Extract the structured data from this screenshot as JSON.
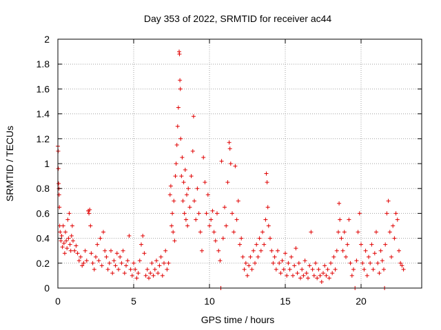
{
  "chart_data": {
    "type": "scatter",
    "title": "Day 353 of 2022, SRMTID for receiver ac44",
    "xlabel": "GPS time / hours",
    "ylabel": "SRMTID / TECUs",
    "xlim": [
      0,
      24
    ],
    "ylim": [
      0,
      2
    ],
    "xticks": [
      0,
      5,
      10,
      15,
      20
    ],
    "yticks": [
      0,
      0.2,
      0.4,
      0.6,
      0.8,
      1,
      1.2,
      1.4,
      1.6,
      1.8,
      2
    ],
    "grid": true,
    "marker": "+",
    "series": [
      {
        "name": "SRMTID",
        "color": "#e00000",
        "points": [
          [
            0.0,
            1.14
          ],
          [
            0.02,
            1.1
          ],
          [
            0.03,
            0.96
          ],
          [
            0.05,
            0.84
          ],
          [
            0.07,
            0.8
          ],
          [
            0.08,
            0.75
          ],
          [
            0.1,
            0.65
          ],
          [
            0.12,
            0.5
          ],
          [
            0.15,
            0.45
          ],
          [
            0.2,
            0.38
          ],
          [
            0.25,
            0.42
          ],
          [
            0.3,
            0.33
          ],
          [
            0.35,
            0.5
          ],
          [
            0.4,
            0.36
          ],
          [
            0.45,
            0.28
          ],
          [
            0.5,
            0.45
          ],
          [
            0.55,
            0.38
          ],
          [
            0.6,
            0.32
          ],
          [
            0.65,
            0.55
          ],
          [
            0.7,
            0.4
          ],
          [
            0.75,
            0.6
          ],
          [
            0.8,
            0.35
          ],
          [
            0.85,
            0.3
          ],
          [
            0.9,
            0.42
          ],
          [
            0.95,
            0.5
          ],
          [
            1.0,
            0.38
          ],
          [
            1.1,
            0.3
          ],
          [
            1.2,
            0.34
          ],
          [
            1.3,
            0.28
          ],
          [
            1.4,
            0.22
          ],
          [
            1.5,
            0.25
          ],
          [
            1.6,
            0.18
          ],
          [
            1.7,
            0.2
          ],
          [
            1.8,
            0.3
          ],
          [
            1.9,
            0.22
          ],
          [
            2.0,
            0.62
          ],
          [
            2.05,
            0.6
          ],
          [
            2.1,
            0.63
          ],
          [
            2.15,
            0.5
          ],
          [
            2.2,
            0.28
          ],
          [
            2.3,
            0.2
          ],
          [
            2.4,
            0.15
          ],
          [
            2.5,
            0.25
          ],
          [
            2.6,
            0.35
          ],
          [
            2.7,
            0.22
          ],
          [
            2.8,
            0.4
          ],
          [
            2.9,
            0.18
          ],
          [
            3.0,
            0.45
          ],
          [
            3.1,
            0.3
          ],
          [
            3.2,
            0.25
          ],
          [
            3.3,
            0.15
          ],
          [
            3.4,
            0.2
          ],
          [
            3.5,
            0.3
          ],
          [
            3.6,
            0.12
          ],
          [
            3.7,
            0.22
          ],
          [
            3.8,
            0.18
          ],
          [
            3.9,
            0.28
          ],
          [
            4.0,
            0.15
          ],
          [
            4.1,
            0.25
          ],
          [
            4.2,
            0.2
          ],
          [
            4.3,
            0.3
          ],
          [
            4.4,
            0.12
          ],
          [
            4.5,
            0.18
          ],
          [
            4.6,
            0.22
          ],
          [
            4.7,
            0.42
          ],
          [
            4.8,
            0.15
          ],
          [
            4.9,
            0.1
          ],
          [
            5.0,
            0.2
          ],
          [
            5.1,
            0.15
          ],
          [
            5.2,
            0.08
          ],
          [
            5.3,
            0.12
          ],
          [
            5.4,
            0.22
          ],
          [
            5.5,
            0.35
          ],
          [
            5.6,
            0.42
          ],
          [
            5.7,
            0.28
          ],
          [
            5.8,
            0.1
          ],
          [
            5.9,
            0.15
          ],
          [
            6.0,
            0.08
          ],
          [
            6.1,
            0.12
          ],
          [
            6.2,
            0.2
          ],
          [
            6.3,
            0.1
          ],
          [
            6.4,
            0.15
          ],
          [
            6.5,
            0.22
          ],
          [
            6.6,
            0.12
          ],
          [
            6.7,
            0.18
          ],
          [
            6.8,
            0.25
          ],
          [
            6.9,
            0.1
          ],
          [
            7.0,
            0.2
          ],
          [
            7.1,
            0.3
          ],
          [
            7.2,
            0.15
          ],
          [
            7.3,
            0.2
          ],
          [
            7.4,
            0.75
          ],
          [
            7.45,
            0.82
          ],
          [
            7.5,
            0.5
          ],
          [
            7.55,
            0.6
          ],
          [
            7.6,
            0.45
          ],
          [
            7.65,
            0.7
          ],
          [
            7.7,
            0.38
          ],
          [
            7.75,
            0.9
          ],
          [
            7.8,
            1.0
          ],
          [
            7.85,
            1.15
          ],
          [
            7.9,
            1.3
          ],
          [
            7.95,
            1.45
          ],
          [
            8.0,
            1.9
          ],
          [
            8.02,
            1.88
          ],
          [
            8.05,
            1.67
          ],
          [
            8.08,
            1.6
          ],
          [
            8.1,
            1.2
          ],
          [
            8.15,
            0.9
          ],
          [
            8.2,
            1.05
          ],
          [
            8.25,
            0.7
          ],
          [
            8.3,
            0.85
          ],
          [
            8.35,
            0.6
          ],
          [
            8.4,
            0.95
          ],
          [
            8.45,
            0.55
          ],
          [
            8.5,
            0.75
          ],
          [
            8.55,
            0.5
          ],
          [
            8.6,
            0.8
          ],
          [
            8.7,
            0.65
          ],
          [
            8.8,
            0.9
          ],
          [
            8.9,
            1.1
          ],
          [
            8.95,
            1.38
          ],
          [
            9.0,
            0.7
          ],
          [
            9.1,
            0.55
          ],
          [
            9.2,
            0.8
          ],
          [
            9.3,
            0.6
          ],
          [
            9.4,
            0.45
          ],
          [
            9.5,
            0.3
          ],
          [
            9.6,
            1.05
          ],
          [
            9.7,
            0.85
          ],
          [
            9.8,
            0.6
          ],
          [
            9.9,
            0.75
          ],
          [
            10.0,
            0.5
          ],
          [
            10.1,
            0.55
          ],
          [
            10.2,
            0.62
          ],
          [
            10.3,
            0.45
          ],
          [
            10.4,
            0.38
          ],
          [
            10.5,
            0.6
          ],
          [
            10.6,
            0.3
          ],
          [
            10.7,
            0.22
          ],
          [
            10.75,
            0.0
          ],
          [
            10.8,
            1.02
          ],
          [
            10.9,
            0.4
          ],
          [
            11.0,
            0.65
          ],
          [
            11.1,
            0.5
          ],
          [
            11.2,
            0.85
          ],
          [
            11.3,
            1.17
          ],
          [
            11.35,
            1.12
          ],
          [
            11.4,
            1.0
          ],
          [
            11.5,
            0.6
          ],
          [
            11.6,
            0.45
          ],
          [
            11.7,
            0.98
          ],
          [
            11.8,
            0.55
          ],
          [
            11.9,
            0.7
          ],
          [
            12.0,
            0.35
          ],
          [
            12.1,
            0.4
          ],
          [
            12.2,
            0.25
          ],
          [
            12.3,
            0.15
          ],
          [
            12.4,
            0.2
          ],
          [
            12.5,
            0.1
          ],
          [
            12.6,
            0.18
          ],
          [
            12.7,
            0.25
          ],
          [
            12.8,
            0.15
          ],
          [
            12.9,
            0.3
          ],
          [
            13.0,
            0.2
          ],
          [
            13.1,
            0.35
          ],
          [
            13.2,
            0.25
          ],
          [
            13.3,
            0.4
          ],
          [
            13.4,
            0.3
          ],
          [
            13.5,
            0.45
          ],
          [
            13.6,
            0.35
          ],
          [
            13.7,
            0.55
          ],
          [
            13.75,
            0.92
          ],
          [
            13.8,
            0.85
          ],
          [
            13.85,
            0.65
          ],
          [
            13.9,
            0.5
          ],
          [
            14.0,
            0.4
          ],
          [
            14.1,
            0.3
          ],
          [
            14.2,
            0.2
          ],
          [
            14.3,
            0.25
          ],
          [
            14.4,
            0.15
          ],
          [
            14.5,
            0.3
          ],
          [
            14.6,
            0.2
          ],
          [
            14.7,
            0.12
          ],
          [
            14.8,
            0.22
          ],
          [
            14.9,
            0.15
          ],
          [
            15.0,
            0.28
          ],
          [
            15.1,
            0.1
          ],
          [
            15.2,
            0.2
          ],
          [
            15.3,
            0.15
          ],
          [
            15.4,
            0.25
          ],
          [
            15.5,
            0.1
          ],
          [
            15.6,
            0.18
          ],
          [
            15.7,
            0.32
          ],
          [
            15.8,
            0.12
          ],
          [
            15.9,
            0.2
          ],
          [
            16.0,
            0.08
          ],
          [
            16.1,
            0.15
          ],
          [
            16.2,
            0.1
          ],
          [
            16.3,
            0.22
          ],
          [
            16.4,
            0.12
          ],
          [
            16.5,
            0.08
          ],
          [
            16.6,
            0.18
          ],
          [
            16.7,
            0.45
          ],
          [
            16.8,
            0.15
          ],
          [
            16.9,
            0.1
          ],
          [
            17.0,
            0.2
          ],
          [
            17.1,
            0.08
          ],
          [
            17.2,
            0.15
          ],
          [
            17.3,
            0.1
          ],
          [
            17.4,
            0.05
          ],
          [
            17.5,
            0.12
          ],
          [
            17.6,
            0.18
          ],
          [
            17.7,
            0.1
          ],
          [
            17.8,
            0.15
          ],
          [
            17.9,
            0.08
          ],
          [
            18.0,
            0.2
          ],
          [
            18.1,
            0.12
          ],
          [
            18.2,
            0.25
          ],
          [
            18.3,
            0.15
          ],
          [
            18.4,
            0.3
          ],
          [
            18.5,
            0.45
          ],
          [
            18.55,
            0.68
          ],
          [
            18.6,
            0.55
          ],
          [
            18.7,
            0.4
          ],
          [
            18.8,
            0.3
          ],
          [
            18.9,
            0.45
          ],
          [
            19.0,
            0.25
          ],
          [
            19.1,
            0.35
          ],
          [
            19.2,
            0.55
          ],
          [
            19.3,
            0.2
          ],
          [
            19.4,
            0.1
          ],
          [
            19.5,
            0.15
          ],
          [
            19.6,
            0.0
          ],
          [
            19.7,
            0.22
          ],
          [
            19.8,
            0.45
          ],
          [
            19.9,
            0.6
          ],
          [
            20.0,
            0.35
          ],
          [
            20.1,
            0.2
          ],
          [
            20.2,
            0.15
          ],
          [
            20.3,
            0.3
          ],
          [
            20.4,
            0.1
          ],
          [
            20.5,
            0.25
          ],
          [
            20.6,
            0.2
          ],
          [
            20.7,
            0.35
          ],
          [
            20.8,
            0.15
          ],
          [
            20.9,
            0.28
          ],
          [
            21.0,
            0.45
          ],
          [
            21.1,
            0.2
          ],
          [
            21.2,
            0.12
          ],
          [
            21.3,
            0.3
          ],
          [
            21.4,
            0.22
          ],
          [
            21.5,
            0.15
          ],
          [
            21.55,
            0.0
          ],
          [
            21.6,
            0.35
          ],
          [
            21.7,
            0.6
          ],
          [
            21.8,
            0.7
          ],
          [
            21.9,
            0.45
          ],
          [
            22.0,
            0.25
          ],
          [
            22.1,
            0.5
          ],
          [
            22.2,
            0.4
          ],
          [
            22.3,
            0.6
          ],
          [
            22.4,
            0.55
          ],
          [
            22.5,
            0.3
          ],
          [
            22.6,
            0.2
          ],
          [
            22.7,
            0.18
          ],
          [
            22.8,
            0.15
          ]
        ]
      }
    ]
  }
}
